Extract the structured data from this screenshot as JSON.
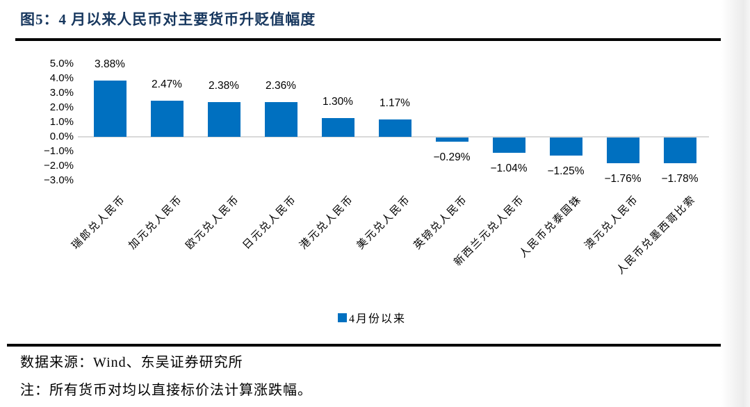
{
  "figure": {
    "title": "图5：4 月以来人民币对主要货币升贬值幅度"
  },
  "chart_data": {
    "type": "bar",
    "title": "图5：4 月以来人民币对主要货币升贬值幅度",
    "categories": [
      "瑞郎兑人民币",
      "加元兑人民币",
      "欧元兑人民币",
      "日元兑人民币",
      "港元兑人民币",
      "美元兑人民币",
      "英镑兑人民币",
      "新西兰元兑人民币",
      "人民币兑泰国铢",
      "澳元兑人民币",
      "人民币兑墨西哥比索"
    ],
    "values": [
      3.88,
      2.47,
      2.38,
      2.36,
      1.3,
      1.17,
      -0.29,
      -1.04,
      -1.25,
      -1.76,
      -1.78
    ],
    "value_labels": [
      "3.88%",
      "2.47%",
      "2.38%",
      "2.36%",
      "1.30%",
      "1.17%",
      "−0.29%",
      "−1.04%",
      "−1.25%",
      "−1.76%",
      "−1.78%"
    ],
    "y_axis": {
      "unit": "%",
      "min": -3.0,
      "max": 5.0,
      "ticks": [
        {
          "label": "5.0%",
          "value": 5
        },
        {
          "label": "4.0%",
          "value": 4
        },
        {
          "label": "3.0%",
          "value": 3
        },
        {
          "label": "2.0%",
          "value": 2
        },
        {
          "label": "1.0%",
          "value": 1
        },
        {
          "label": "0.0%",
          "value": 0
        },
        {
          "label": "−1.0%",
          "value": -1
        },
        {
          "label": "−2.0%",
          "value": -2
        },
        {
          "label": "−3.0%",
          "value": -3
        }
      ]
    },
    "legend": {
      "position": "bottom",
      "entries": [
        {
          "label": "4月份以来",
          "color": "#0070C0"
        }
      ]
    },
    "bar_color": "#0070C0",
    "grid": false,
    "axis_line_color": "#D9D9D9"
  },
  "footer": {
    "source": "数据来源：Wind、东吴证券研究所",
    "note": "注：所有货币对均以直接标价法计算涨跌幅。"
  },
  "colors": {
    "title_navy": "#17375E",
    "bar_blue": "#0070C0",
    "divider_black": "#000000",
    "gridline_gray": "#D9D9D9"
  }
}
